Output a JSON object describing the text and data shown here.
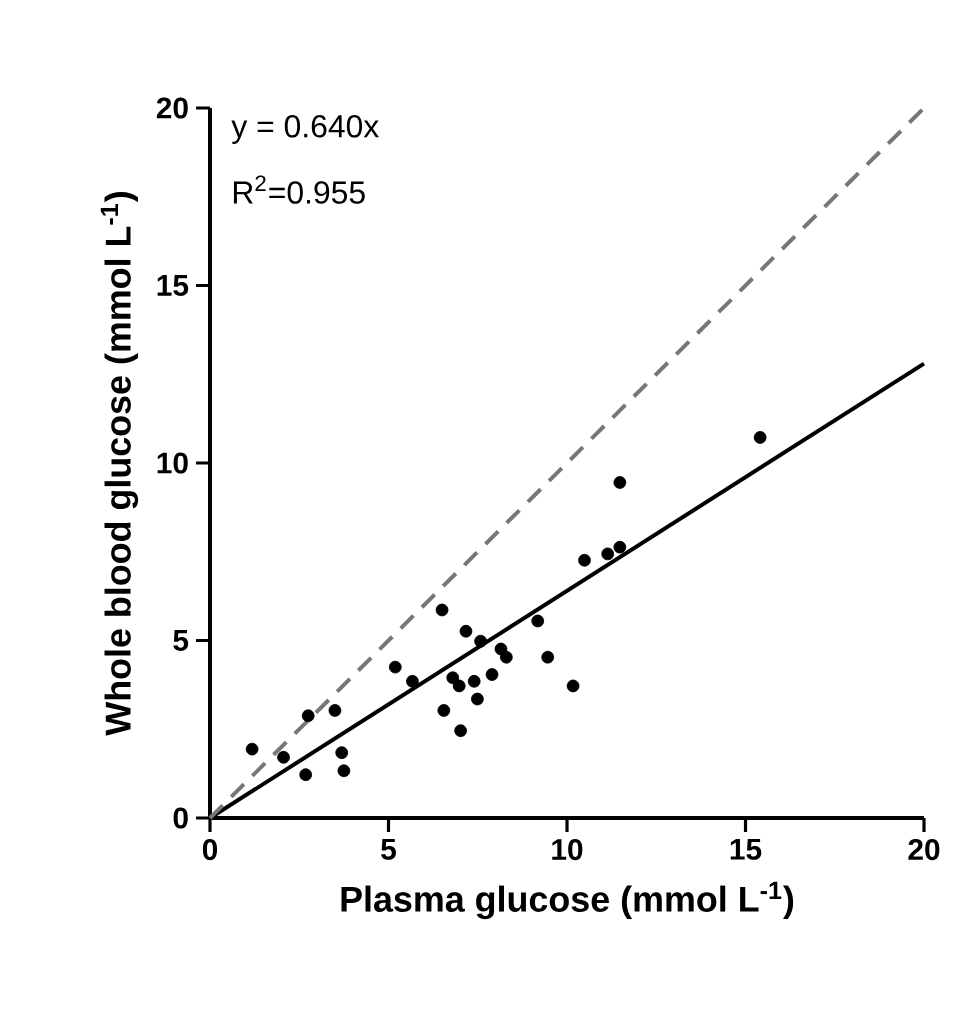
{
  "chart_data": {
    "type": "scatter",
    "xlabel": "Plasma glucose (mmol L$^{-1}$)",
    "ylabel": "Whole blood glucose (mmol L$^{-1}$)",
    "xlim": [
      0,
      20
    ],
    "ylim": [
      0,
      20
    ],
    "xticks": [
      0,
      5,
      10,
      15,
      20
    ],
    "yticks": [
      0,
      5,
      10,
      15,
      20
    ],
    "annotations": [
      "y = 0.640x",
      "R$^{2}$=0.955"
    ],
    "series": [
      {
        "type": "scatter",
        "marker": "circle",
        "color": "#000000",
        "x": [
          1.18,
          2.06,
          2.68,
          2.75,
          3.5,
          3.69,
          3.75,
          5.19,
          5.67,
          6.5,
          6.55,
          6.8,
          6.98,
          7.02,
          7.17,
          7.4,
          7.49,
          7.58,
          7.9,
          8.15,
          8.3,
          9.18,
          9.46,
          10.17,
          10.49,
          11.14,
          11.48,
          11.48,
          15.41
        ],
        "values": [
          1.94,
          1.71,
          1.22,
          2.88,
          3.03,
          1.84,
          1.33,
          4.25,
          3.85,
          5.86,
          3.03,
          3.95,
          3.72,
          2.46,
          5.26,
          3.85,
          3.35,
          4.98,
          4.04,
          4.76,
          4.53,
          5.55,
          4.53,
          3.72,
          7.26,
          7.44,
          7.63,
          9.45,
          10.72
        ]
      },
      {
        "type": "line",
        "color": "#000000",
        "line_style": "solid",
        "x": [
          0,
          20
        ],
        "values": [
          0,
          12.8
        ]
      },
      {
        "type": "line",
        "color": "#777777",
        "line_style": "dashed",
        "x": [
          0,
          20
        ],
        "values": [
          0,
          20
        ]
      }
    ]
  }
}
